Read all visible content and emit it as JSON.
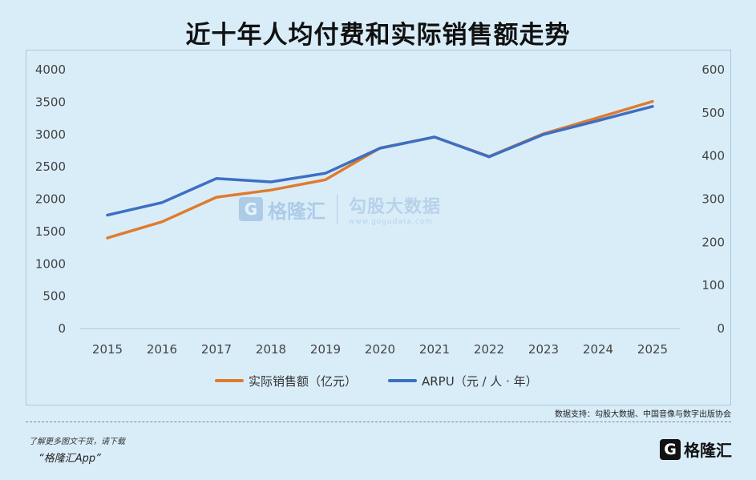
{
  "title": "近十年人均付费和实际销售额走势",
  "chart_data": {
    "type": "line",
    "title": "近十年人均付费和实际销售额走势",
    "x": [
      "2015",
      "2016",
      "2017",
      "2018",
      "2019",
      "2020",
      "2021",
      "2022",
      "2023",
      "2024",
      "2025"
    ],
    "y_left": {
      "ylim": [
        0,
        4000
      ],
      "ticks": [
        0,
        500,
        1000,
        1500,
        2000,
        2500,
        3000,
        3500,
        4000
      ]
    },
    "y_right": {
      "ylim": [
        0,
        600
      ],
      "ticks": [
        0,
        100,
        200,
        300,
        400,
        500,
        600
      ]
    },
    "grid": false,
    "legend_position": "bottom",
    "series": [
      {
        "name": "实际销售额（亿元）",
        "axis": "left",
        "color": "#e07b2e",
        "values": [
          1400,
          1650,
          2030,
          2140,
          2300,
          2790,
          2960,
          2660,
          3010,
          3260,
          3510
        ]
      },
      {
        "name": "ARPU（元 / 人 · 年）",
        "axis": "right",
        "color": "#3d6fc2",
        "values": [
          263,
          292,
          348,
          340,
          360,
          418,
          444,
          398,
          450,
          482,
          515
        ]
      }
    ]
  },
  "watermark": {
    "logo_letter": "G",
    "brand": "格隆汇",
    "partner": "勾股大数据",
    "url": "www.gogudata.com"
  },
  "source": "数据支持：勾股大数据、中国音像与数字出版协会",
  "footer": {
    "note": "了解更多图文干货，请下载",
    "app": "“格隆汇App”"
  },
  "logo": {
    "letter": "G",
    "text": "格隆汇"
  }
}
